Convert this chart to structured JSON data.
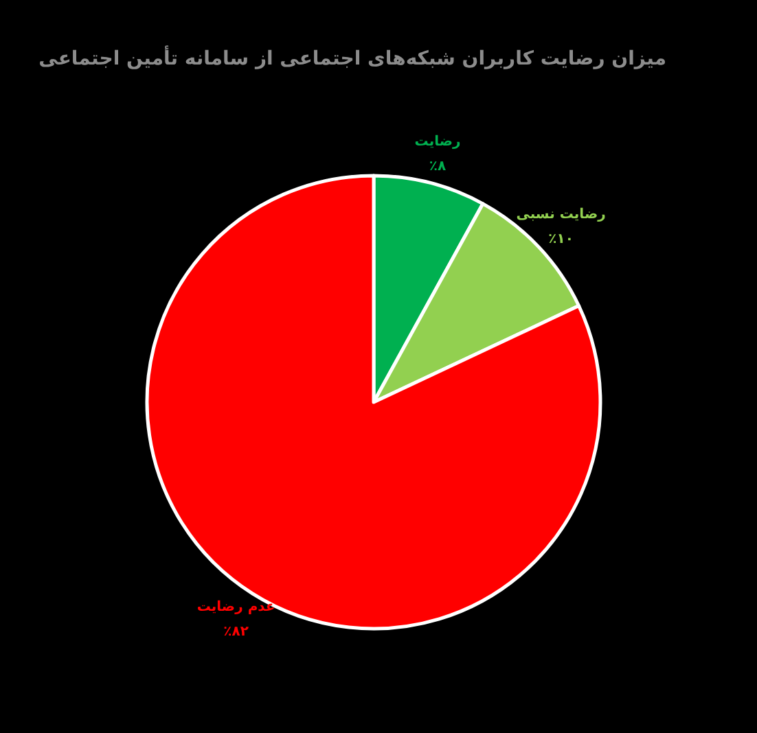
{
  "chart_data": {
    "type": "pie",
    "title": "میزان رضایت کاربران شبکه‌های اجتماعی از سامانه تأمین اجتماعی",
    "categories": [
      "رضایت",
      "رضایت نسبی",
      "عدم رضایت"
    ],
    "values": [
      8,
      10,
      82
    ],
    "colors": [
      "#00b050",
      "#92d050",
      "#ff0000"
    ],
    "value_labels": [
      "٪۸",
      "٪۱۰",
      "٪۸۲"
    ]
  }
}
